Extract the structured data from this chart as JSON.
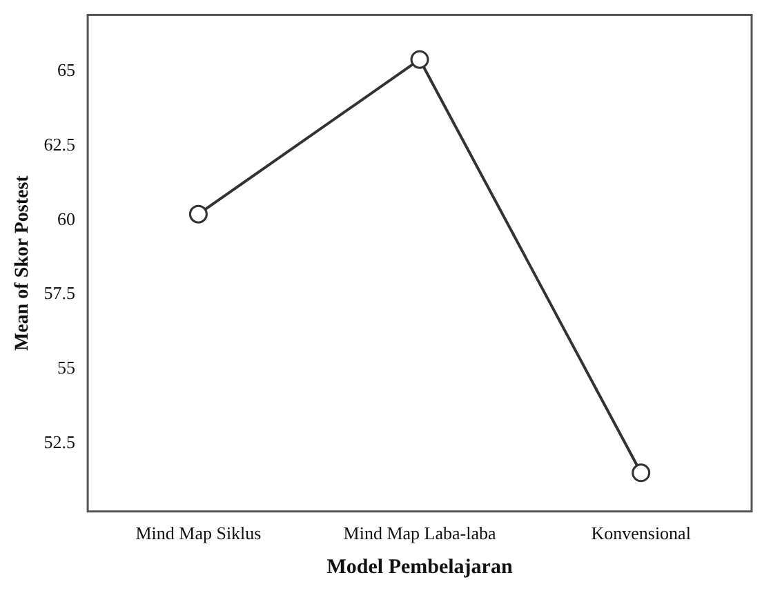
{
  "chart_data": {
    "type": "line",
    "xlabel": "Model Pembelajaran",
    "ylabel": "Mean of Skor Postest",
    "categories": [
      "Mind Map Siklus",
      "Mind Map Laba-laba",
      "Konvensional"
    ],
    "series": [
      {
        "color": "#333333",
        "values": [
          60.2,
          65.4,
          51.5
        ]
      }
    ],
    "ylim": [
      50.2,
      66.9
    ],
    "yticks": [
      52.5,
      55,
      57.5,
      60,
      62.5,
      65
    ],
    "grid": false,
    "legend": false,
    "marker": "circle",
    "line_style": "solid"
  }
}
